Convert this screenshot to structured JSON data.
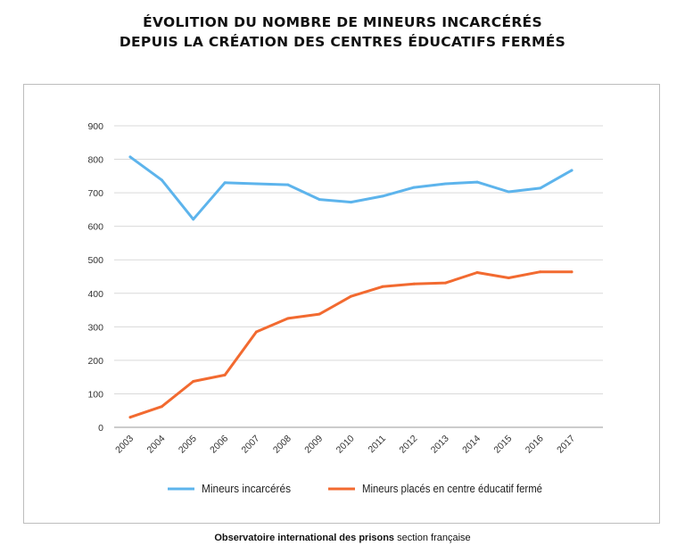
{
  "title": {
    "line1": "ÉVOLITION DU NOMBRE DE MINEURS INCARCÉRÉS",
    "line2": "DEPUIS LA CRÉATION DES CENTRES ÉDUCATIFS FERMÉS"
  },
  "footer": {
    "bold": "Observatoire international des prisons",
    "rest": "section française"
  },
  "chart_data": {
    "type": "line",
    "title": "ÉVOLITION DU NOMBRE DE MINEURS INCARCÉRÉS DEPUIS LA CRÉATION DES CENTRES ÉDUCATIFS FERMÉS",
    "x": [
      "2003",
      "2004",
      "2005",
      "2006",
      "2007",
      "2008",
      "2009",
      "2010",
      "2011",
      "2012",
      "2013",
      "2014",
      "2015",
      "2016",
      "2017"
    ],
    "ylim": [
      0,
      900
    ],
    "yticks": [
      0,
      100,
      200,
      300,
      400,
      500,
      600,
      700,
      800,
      900
    ],
    "grid": true,
    "legend_position": "bottom",
    "series": [
      {
        "name": "Mineurs incarcérés",
        "color": "#5db4ec",
        "values": [
          807,
          738,
          621,
          730,
          727,
          724,
          680,
          672,
          690,
          716,
          727,
          732,
          703,
          714,
          767
        ]
      },
      {
        "name": "Mineurs placés en centre éducatif fermé",
        "color": "#f26a30",
        "values": [
          30,
          62,
          137,
          156,
          285,
          325,
          338,
          391,
          420,
          428,
          431,
          462,
          446,
          464,
          464
        ]
      }
    ]
  }
}
